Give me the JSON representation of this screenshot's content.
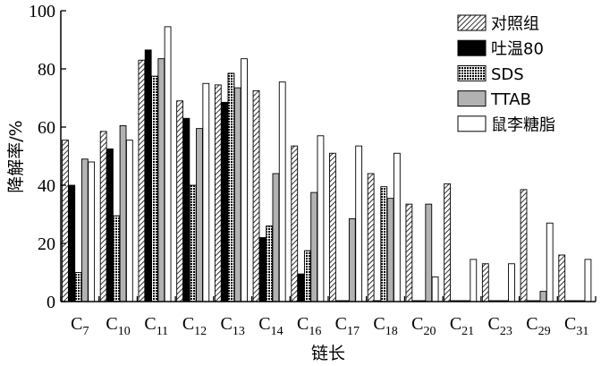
{
  "chart_data": {
    "type": "bar",
    "xlabel": "链长",
    "ylabel": "降解率/%",
    "ylim": [
      0,
      100
    ],
    "yticks": [
      0,
      20,
      40,
      60,
      80,
      100
    ],
    "grid": false,
    "legend_position": "top-right",
    "categories": [
      {
        "base": "C",
        "sub": "7"
      },
      {
        "base": "C",
        "sub": "10"
      },
      {
        "base": "C",
        "sub": "11"
      },
      {
        "base": "C",
        "sub": "12"
      },
      {
        "base": "C",
        "sub": "13"
      },
      {
        "base": "C",
        "sub": "14"
      },
      {
        "base": "C",
        "sub": "16"
      },
      {
        "base": "C",
        "sub": "17"
      },
      {
        "base": "C",
        "sub": "18"
      },
      {
        "base": "C",
        "sub": "20"
      },
      {
        "base": "C",
        "sub": "21"
      },
      {
        "base": "C",
        "sub": "23"
      },
      {
        "base": "C",
        "sub": "29"
      },
      {
        "base": "C",
        "sub": "31"
      }
    ],
    "series": [
      {
        "name": "对照组",
        "pattern": "hatch",
        "values": [
          55.5,
          58.5,
          83,
          69,
          74.5,
          72.5,
          53.5,
          51,
          44,
          33.5,
          40.5,
          13,
          38.5,
          16
        ]
      },
      {
        "name": "吐温80",
        "pattern": "black",
        "values": [
          40,
          52.5,
          86.5,
          63,
          68.5,
          22,
          9.5,
          0,
          0,
          0,
          0,
          0,
          0,
          0
        ]
      },
      {
        "name": "SDS",
        "pattern": "dots",
        "values": [
          10,
          29.5,
          77.5,
          40,
          78.5,
          26,
          17.5,
          0,
          39.5,
          0,
          0,
          0,
          0,
          0
        ]
      },
      {
        "name": "TTAB",
        "pattern": "gray",
        "values": [
          49,
          60.5,
          83.5,
          59.5,
          73.5,
          44,
          37.5,
          28.5,
          35.5,
          33.5,
          0,
          0,
          3.5,
          0
        ]
      },
      {
        "name": "鼠李糖脂",
        "pattern": "white",
        "values": [
          48,
          55.5,
          94.5,
          75,
          83.5,
          75.5,
          57,
          53.5,
          51,
          8.5,
          14.5,
          13,
          27,
          14.5
        ]
      }
    ]
  }
}
